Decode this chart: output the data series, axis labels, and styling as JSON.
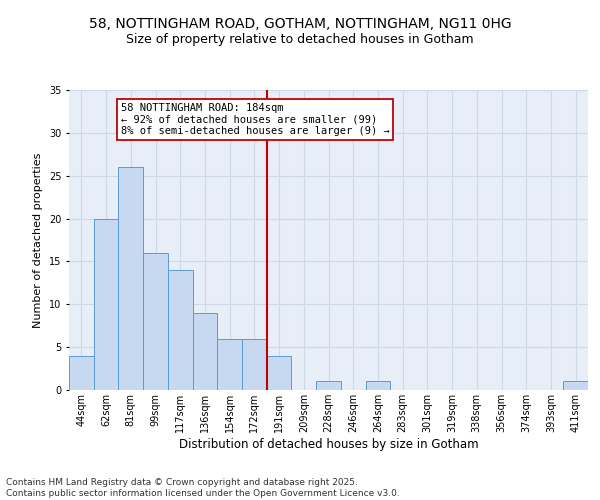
{
  "title_line1": "58, NOTTINGHAM ROAD, GOTHAM, NOTTINGHAM, NG11 0HG",
  "title_line2": "Size of property relative to detached houses in Gotham",
  "xlabel": "Distribution of detached houses by size in Gotham",
  "ylabel": "Number of detached properties",
  "bar_labels": [
    "44sqm",
    "62sqm",
    "81sqm",
    "99sqm",
    "117sqm",
    "136sqm",
    "154sqm",
    "172sqm",
    "191sqm",
    "209sqm",
    "228sqm",
    "246sqm",
    "264sqm",
    "283sqm",
    "301sqm",
    "319sqm",
    "338sqm",
    "356sqm",
    "374sqm",
    "393sqm",
    "411sqm"
  ],
  "bar_values": [
    4,
    20,
    26,
    16,
    14,
    9,
    6,
    6,
    4,
    0,
    1,
    0,
    1,
    0,
    0,
    0,
    0,
    0,
    0,
    0,
    1
  ],
  "bar_color": "#c6d9f0",
  "bar_edge_color": "#5b9bd5",
  "vline_index": 7.5,
  "vline_color": "#c00000",
  "annotation_text": "58 NOTTINGHAM ROAD: 184sqm\n← 92% of detached houses are smaller (99)\n8% of semi-detached houses are larger (9) →",
  "annotation_box_color": "#ffffff",
  "annotation_box_edge": "#c00000",
  "ylim": [
    0,
    35
  ],
  "yticks": [
    0,
    5,
    10,
    15,
    20,
    25,
    30,
    35
  ],
  "grid_color": "#d0d8e8",
  "background_color": "#e8eef8",
  "footer_text": "Contains HM Land Registry data © Crown copyright and database right 2025.\nContains public sector information licensed under the Open Government Licence v3.0.",
  "title_fontsize": 10,
  "subtitle_fontsize": 9,
  "tick_fontsize": 7,
  "ylabel_fontsize": 8,
  "xlabel_fontsize": 8.5,
  "annotation_fontsize": 7.5,
  "footer_fontsize": 6.5
}
